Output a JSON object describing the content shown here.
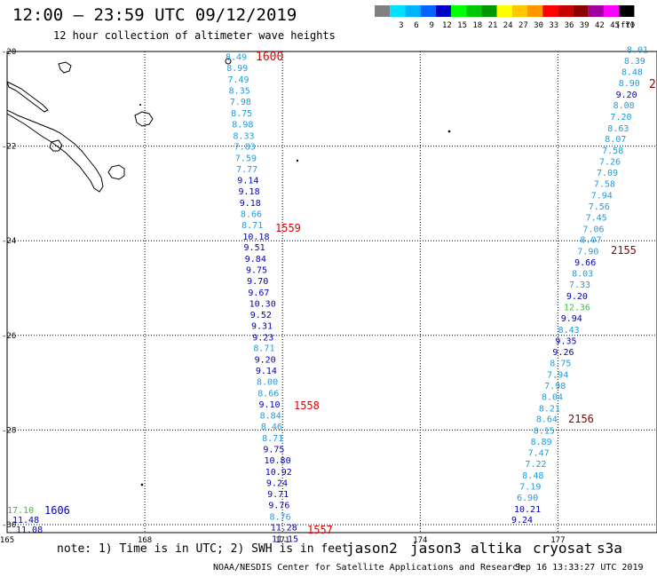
{
  "header": {
    "title": "12:00 — 23:59 UTC 09/12/2019",
    "subtitle": "12 hour collection of altimeter wave heights"
  },
  "legend": {
    "unit": "(ft)",
    "items": [
      {
        "label": "",
        "color": "#808080"
      },
      {
        "label": "3",
        "color": "#00e0ff"
      },
      {
        "label": "6",
        "color": "#00b4ff"
      },
      {
        "label": "9",
        "color": "#0064ff"
      },
      {
        "label": "12",
        "color": "#0000c8"
      },
      {
        "label": "15",
        "color": "#00ff00"
      },
      {
        "label": "18",
        "color": "#00c800"
      },
      {
        "label": "21",
        "color": "#009600"
      },
      {
        "label": "24",
        "color": "#ffff00"
      },
      {
        "label": "27",
        "color": "#ffc800"
      },
      {
        "label": "30",
        "color": "#ff9600"
      },
      {
        "label": "33",
        "color": "#ff0000"
      },
      {
        "label": "36",
        "color": "#c80000"
      },
      {
        "label": "39",
        "color": "#8c0000"
      },
      {
        "label": "42",
        "color": "#a000a0"
      },
      {
        "label": "45",
        "color": "#ff00ff"
      },
      {
        "label": "70",
        "color": "#000000"
      }
    ]
  },
  "map": {
    "lon_range": [
      165,
      179
    ],
    "lat_range": [
      -30,
      -20
    ],
    "lon_ticks": [
      "165",
      "168",
      "171",
      "174",
      "177"
    ],
    "lat_ticks": [
      "-20",
      "-22",
      "-24",
      "-26",
      "-28",
      "-30"
    ],
    "colors": {
      "c_lt": "#1e9be0",
      "c_dk": "#0000b4",
      "c_gr": "#2ec82e",
      "time_red": "#e00000",
      "time_dk": "#8b0000"
    }
  },
  "tracks": {
    "west": [
      {
        "lat": -20.1,
        "text": "8.49",
        "c": "c_lt"
      },
      {
        "lat": -20.34,
        "text": "8.99",
        "c": "c_lt"
      },
      {
        "lat": -20.58,
        "text": "7.49",
        "c": "c_lt"
      },
      {
        "lat": -20.82,
        "text": "8.35",
        "c": "c_lt"
      },
      {
        "lat": -21.05,
        "text": "7.98",
        "c": "c_lt"
      },
      {
        "lat": -21.29,
        "text": "8.75",
        "c": "c_lt"
      },
      {
        "lat": -21.53,
        "text": "8.98",
        "c": "c_lt"
      },
      {
        "lat": -21.77,
        "text": "8.33",
        "c": "c_lt"
      },
      {
        "lat": -22.0,
        "text": "7.83",
        "c": "c_lt"
      },
      {
        "lat": -22.24,
        "text": "7.59",
        "c": "c_lt"
      },
      {
        "lat": -22.48,
        "text": "7.77",
        "c": "c_lt"
      },
      {
        "lat": -22.71,
        "text": "9.14",
        "c": "c_dk"
      },
      {
        "lat": -22.95,
        "text": "9.18",
        "c": "c_dk"
      },
      {
        "lat": -23.19,
        "text": "9.18",
        "c": "c_dk"
      },
      {
        "lat": -23.42,
        "text": "8.66",
        "c": "c_lt"
      },
      {
        "lat": -23.66,
        "text": "8.71",
        "c": "c_lt"
      },
      {
        "lat": -23.9,
        "text": "10.18",
        "c": "c_dk"
      },
      {
        "lat": -24.13,
        "text": "9.51",
        "c": "c_dk"
      },
      {
        "lat": -24.37,
        "text": "9.84",
        "c": "c_dk"
      },
      {
        "lat": -24.61,
        "text": "9.75",
        "c": "c_dk"
      },
      {
        "lat": -24.84,
        "text": "9.70",
        "c": "c_dk"
      },
      {
        "lat": -25.08,
        "text": "9.67",
        "c": "c_dk"
      },
      {
        "lat": -25.32,
        "text": "10.30",
        "c": "c_dk"
      },
      {
        "lat": -25.55,
        "text": "9.52",
        "c": "c_dk"
      },
      {
        "lat": -25.79,
        "text": "9.31",
        "c": "c_dk"
      },
      {
        "lat": -26.03,
        "text": "9.23",
        "c": "c_dk"
      },
      {
        "lat": -26.26,
        "text": "8.71",
        "c": "c_lt"
      },
      {
        "lat": -26.5,
        "text": "9.20",
        "c": "c_dk"
      },
      {
        "lat": -26.74,
        "text": "9.14",
        "c": "c_dk"
      },
      {
        "lat": -26.97,
        "text": "8.00",
        "c": "c_lt"
      },
      {
        "lat": -27.21,
        "text": "8.66",
        "c": "c_lt"
      },
      {
        "lat": -27.45,
        "text": "9.10",
        "c": "c_dk"
      },
      {
        "lat": -27.68,
        "text": "8.84",
        "c": "c_lt"
      },
      {
        "lat": -27.92,
        "text": "8.46",
        "c": "c_lt"
      },
      {
        "lat": -28.16,
        "text": "8.71",
        "c": "c_lt"
      },
      {
        "lat": -28.4,
        "text": "9.75",
        "c": "c_dk"
      },
      {
        "lat": -28.63,
        "text": "10.80",
        "c": "c_dk"
      },
      {
        "lat": -28.87,
        "text": "10.92",
        "c": "c_dk"
      },
      {
        "lat": -29.11,
        "text": "9.24",
        "c": "c_dk"
      },
      {
        "lat": -29.34,
        "text": "9.71",
        "c": "c_dk"
      },
      {
        "lat": -29.58,
        "text": "9.76",
        "c": "c_dk"
      },
      {
        "lat": -29.82,
        "text": "8.76",
        "c": "c_lt"
      },
      {
        "lat": -30.05,
        "text": "11.28",
        "c": "c_dk"
      },
      {
        "lat": -30.29,
        "text": "11.15",
        "c": "c_dk"
      }
    ],
    "east": [
      {
        "lat": -19.95,
        "text": "8.01",
        "c": "c_lt"
      },
      {
        "lat": -20.19,
        "text": "8.39",
        "c": "c_lt"
      },
      {
        "lat": -20.42,
        "text": "8.48",
        "c": "c_lt"
      },
      {
        "lat": -20.66,
        "text": "8.90",
        "c": "c_lt"
      },
      {
        "lat": -20.9,
        "text": "9.20",
        "c": "c_dk"
      },
      {
        "lat": -21.13,
        "text": "8.08",
        "c": "c_lt"
      },
      {
        "lat": -21.37,
        "text": "7.20",
        "c": "c_lt"
      },
      {
        "lat": -21.61,
        "text": "8.63",
        "c": "c_lt"
      },
      {
        "lat": -21.84,
        "text": "8.07",
        "c": "c_lt"
      },
      {
        "lat": -22.08,
        "text": "7.58",
        "c": "c_lt"
      },
      {
        "lat": -22.32,
        "text": "7.26",
        "c": "c_lt"
      },
      {
        "lat": -22.55,
        "text": "7.09",
        "c": "c_lt"
      },
      {
        "lat": -22.79,
        "text": "7.58",
        "c": "c_lt"
      },
      {
        "lat": -23.03,
        "text": "7.94",
        "c": "c_lt"
      },
      {
        "lat": -23.26,
        "text": "7.56",
        "c": "c_lt"
      },
      {
        "lat": -23.5,
        "text": "7.45",
        "c": "c_lt"
      },
      {
        "lat": -23.74,
        "text": "7.06",
        "c": "c_lt"
      },
      {
        "lat": -23.97,
        "text": "8.07",
        "c": "c_lt"
      },
      {
        "lat": -24.21,
        "text": "7.90",
        "c": "c_lt"
      },
      {
        "lat": -24.45,
        "text": "9.66",
        "c": "c_dk"
      },
      {
        "lat": -24.68,
        "text": "8.03",
        "c": "c_lt"
      },
      {
        "lat": -24.92,
        "text": "7.33",
        "c": "c_lt"
      },
      {
        "lat": -25.16,
        "text": "9.20",
        "c": "c_dk"
      },
      {
        "lat": -25.39,
        "text": "12.36",
        "c": "c_gr"
      },
      {
        "lat": -25.63,
        "text": "9.94",
        "c": "c_dk"
      },
      {
        "lat": -25.87,
        "text": "8.43",
        "c": "c_lt"
      },
      {
        "lat": -26.11,
        "text": "9.35",
        "c": "c_dk"
      },
      {
        "lat": -26.34,
        "text": "9.26",
        "c": "c_dk"
      },
      {
        "lat": -26.58,
        "text": "8.75",
        "c": "c_lt"
      },
      {
        "lat": -26.82,
        "text": "7.94",
        "c": "c_lt"
      },
      {
        "lat": -27.05,
        "text": "7.98",
        "c": "c_lt"
      },
      {
        "lat": -27.29,
        "text": "8.04",
        "c": "c_lt"
      },
      {
        "lat": -27.53,
        "text": "8.21",
        "c": "c_lt"
      },
      {
        "lat": -27.76,
        "text": "8.64",
        "c": "c_lt"
      },
      {
        "lat": -28.0,
        "text": "8.15",
        "c": "c_lt"
      },
      {
        "lat": -28.24,
        "text": "8.89",
        "c": "c_lt"
      },
      {
        "lat": -28.47,
        "text": "7.47",
        "c": "c_lt"
      },
      {
        "lat": -28.71,
        "text": "7.22",
        "c": "c_lt"
      },
      {
        "lat": -28.95,
        "text": "8.48",
        "c": "c_lt"
      },
      {
        "lat": -29.18,
        "text": "7.19",
        "c": "c_lt"
      },
      {
        "lat": -29.42,
        "text": "6.90",
        "c": "c_lt"
      },
      {
        "lat": -29.66,
        "text": "10.21",
        "c": "c_dk"
      },
      {
        "lat": -29.89,
        "text": "9.24",
        "c": "c_dk"
      }
    ],
    "corner": [
      {
        "text": "17.10",
        "c": "c_gr",
        "row": 0
      },
      {
        "text": "11.48",
        "c": "c_dk",
        "row": 1
      },
      {
        "text": "11.08",
        "c": "c_dk",
        "row": 2
      }
    ]
  },
  "times": [
    {
      "text": "1600",
      "c": "time_red"
    },
    {
      "text": "1559",
      "c": "time_red"
    },
    {
      "text": "1558",
      "c": "time_red"
    },
    {
      "text": "1557",
      "c": "time_red"
    },
    {
      "text": "1606",
      "c": "c_dk"
    },
    {
      "text": "2",
      "c": "time_dk"
    },
    {
      "text": "2155",
      "c": "time_dk"
    },
    {
      "text": "2156",
      "c": "time_dk"
    }
  ],
  "footer": {
    "note": "note: 1) Time is in UTC; 2) SWH is in feet",
    "satellites": [
      {
        "name": "jason2",
        "color": "#0000dc"
      },
      {
        "name": "jason3",
        "color": "#00b400"
      },
      {
        "name": "altika",
        "color": "#ff9600"
      },
      {
        "name": "cryosat",
        "color": "#e00000"
      },
      {
        "name": "s3a",
        "color": "#8b0000"
      }
    ],
    "org": "NOAA/NESDIS Center for Satellite Applications and Research",
    "date": "Sep 16 13:33:27 UTC 2019"
  }
}
